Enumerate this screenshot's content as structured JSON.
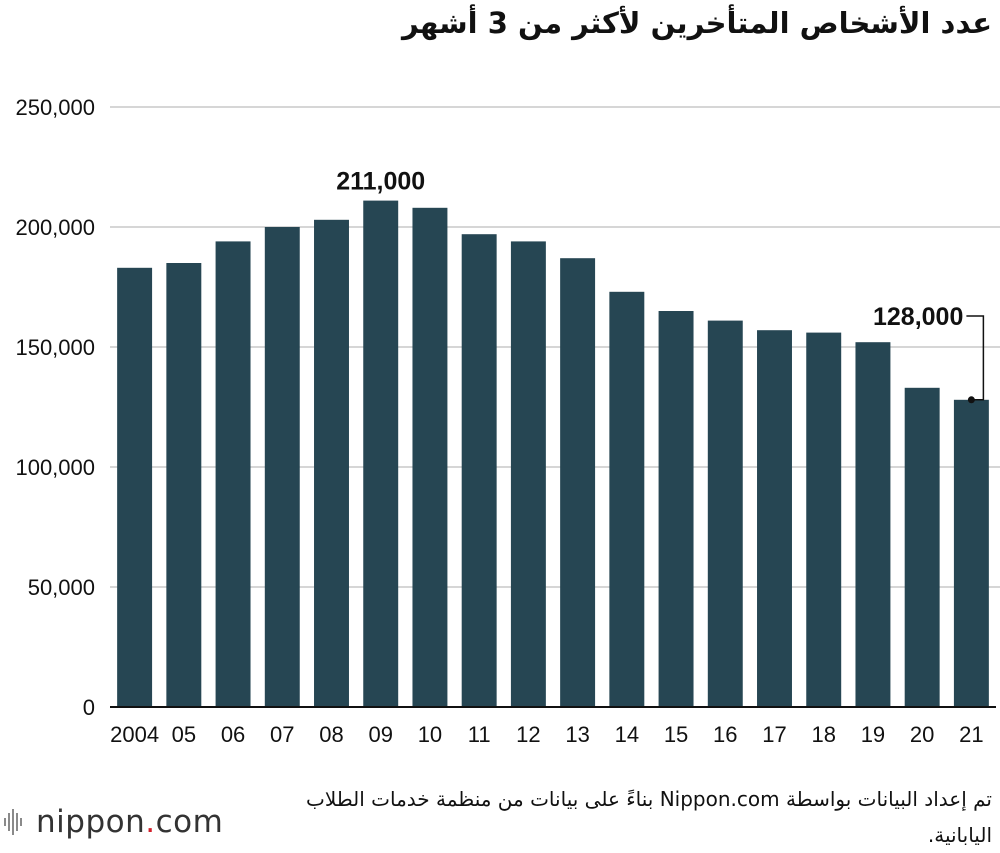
{
  "title": "عدد الأشخاص المتأخرين لأكثر من 3 أشهر",
  "source": "تم إعداد البيانات بواسطة Nippon.com بناءً على بيانات من منظمة خدمات الطلاب اليابانية.",
  "logo": {
    "name": "nippon",
    "dot": ".",
    "tld": "com"
  },
  "colors": {
    "bar": "#264653",
    "grid": "#c8c8c8",
    "axis": "#111111",
    "logo_dot": "#d21f2a"
  },
  "chart_data": {
    "type": "bar",
    "title": "عدد الأشخاص المتأخرين لأكثر من 3 أشهر",
    "xlabel": "",
    "ylabel": "",
    "ylim": [
      0,
      250000
    ],
    "yticks": [
      0,
      50000,
      100000,
      150000,
      200000,
      250000
    ],
    "ytick_labels": [
      "0",
      "50,000",
      "100,000",
      "150,000",
      "200,000",
      "250,000"
    ],
    "categories": [
      "2004",
      "05",
      "06",
      "07",
      "08",
      "09",
      "10",
      "11",
      "12",
      "13",
      "14",
      "15",
      "16",
      "17",
      "18",
      "19",
      "20",
      "21"
    ],
    "values": [
      183000,
      185000,
      194000,
      200000,
      203000,
      211000,
      208000,
      197000,
      194000,
      187000,
      173000,
      165000,
      161000,
      157000,
      156000,
      152000,
      133000,
      128000
    ],
    "grid": true,
    "annotations": [
      {
        "category": "09",
        "text": "211,000"
      },
      {
        "category": "21",
        "text": "128,000",
        "callout": true
      }
    ]
  }
}
